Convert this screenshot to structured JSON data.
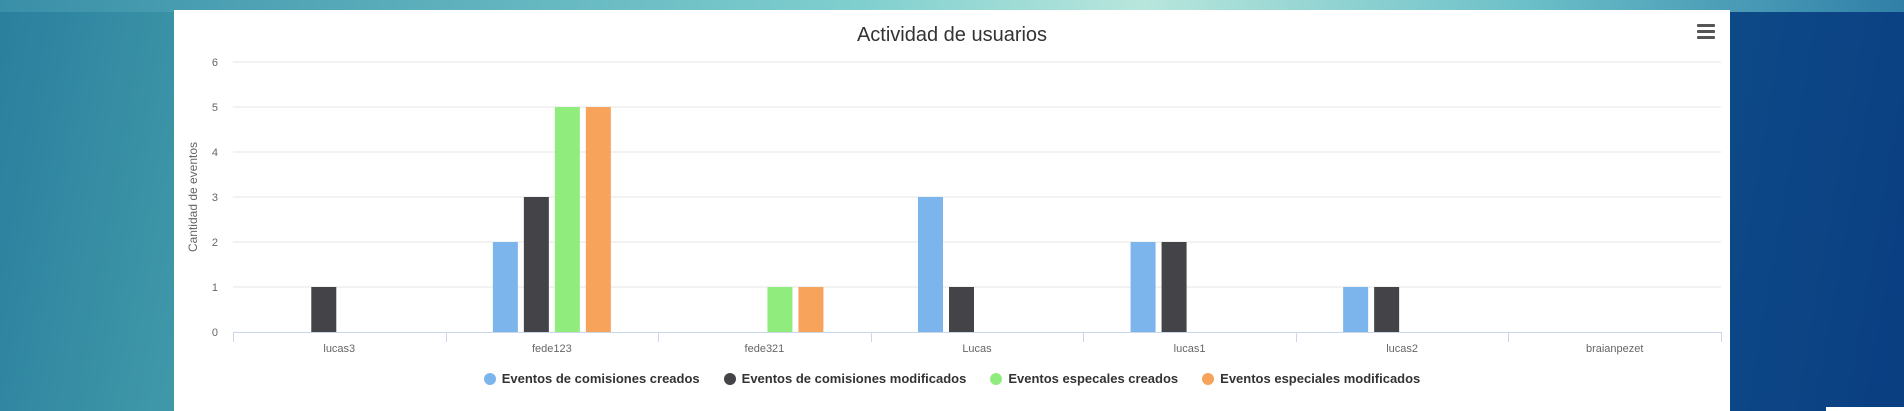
{
  "chart_data": {
    "type": "bar",
    "title": "Actividad de usuarios",
    "xlabel": "",
    "ylabel": "Cantidad de eventos",
    "ylim": [
      0,
      6
    ],
    "yticks": [
      "0",
      "1",
      "2",
      "3",
      "4",
      "5",
      "6"
    ],
    "categories": [
      "lucas3",
      "fede123",
      "fede321",
      "Lucas",
      "lucas1",
      "lucas2",
      "braianpezet"
    ],
    "series": [
      {
        "name": "Eventos de comisiones creados",
        "color": "#7cb5ec",
        "values": [
          0,
          2,
          0,
          3,
          2,
          1,
          0
        ]
      },
      {
        "name": "Eventos de comisiones modificados",
        "color": "#434348",
        "values": [
          1,
          3,
          0,
          1,
          2,
          1,
          0
        ]
      },
      {
        "name": "Eventos especales creados",
        "color": "#90ed7d",
        "values": [
          0,
          5,
          1,
          0,
          0,
          0,
          0
        ]
      },
      {
        "name": "Eventos especiales modificados",
        "color": "#f7a35c",
        "values": [
          0,
          5,
          1,
          0,
          0,
          0,
          0
        ]
      }
    ],
    "grid": true,
    "legend_position": "bottom-center"
  },
  "menu_icon": "hamburger-menu-icon"
}
